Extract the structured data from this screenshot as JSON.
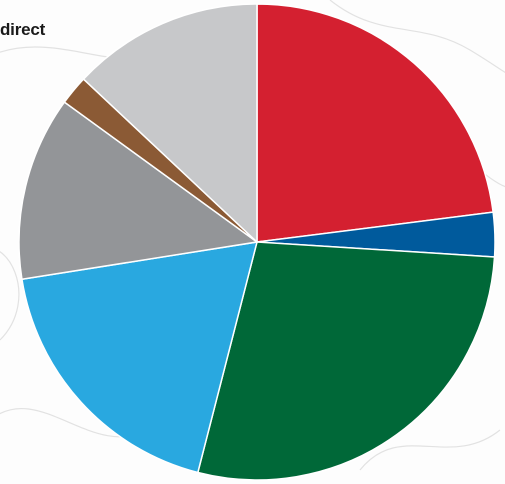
{
  "chart_data": {
    "type": "pie",
    "label_text": "direct",
    "slices": [
      {
        "value": 23.0,
        "color": "#d42030"
      },
      {
        "value": 3.0,
        "color": "#005a9c"
      },
      {
        "value": 28.0,
        "color": "#006838"
      },
      {
        "value": 18.5,
        "color": "#29a8e0"
      },
      {
        "value": 12.5,
        "color": "#939598"
      },
      {
        "value": 2.0,
        "color": "#8b5a35"
      },
      {
        "value": 13.0,
        "color": "#c7c8ca"
      }
    ],
    "start_angle_deg": 0,
    "direction": "clockwise",
    "slice_stroke": "#ffffff"
  }
}
